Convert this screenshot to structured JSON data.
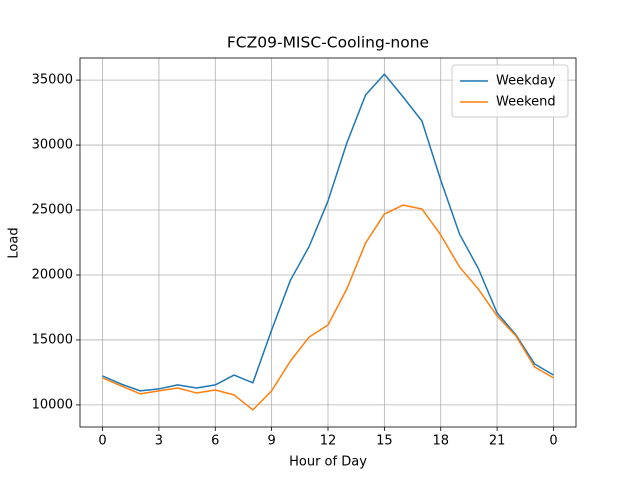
{
  "chart_data": {
    "type": "line",
    "title": "FCZ09-MISC-Cooling-none",
    "xlabel": "Hour of Day",
    "ylabel": "Load",
    "x": [
      0,
      1,
      2,
      3,
      4,
      5,
      6,
      7,
      8,
      9,
      10,
      11,
      12,
      13,
      14,
      15,
      16,
      17,
      18,
      19,
      20,
      21,
      22,
      23,
      24
    ],
    "series": [
      {
        "name": "Weekday",
        "color": "#1f77b4",
        "values": [
          12230,
          11600,
          11080,
          11230,
          11540,
          11300,
          11540,
          12300,
          11700,
          15770,
          19600,
          22200,
          25700,
          30150,
          33850,
          35460,
          33700,
          31850,
          27300,
          23150,
          20500,
          17080,
          15400,
          13150,
          12300
        ]
      },
      {
        "name": "Weekend",
        "color": "#ff7f0e",
        "values": [
          12080,
          11460,
          10850,
          11080,
          11300,
          10920,
          11150,
          10770,
          9620,
          11080,
          13380,
          15230,
          16150,
          18920,
          22460,
          24690,
          25380,
          25080,
          23080,
          20620,
          18920,
          16850,
          15310,
          12920,
          12080
        ]
      }
    ],
    "xlim": [
      -1.2,
      25.2
    ],
    "xticks": [
      0,
      3,
      6,
      9,
      12,
      15,
      18,
      21,
      {
        "value": 24,
        "label": "0"
      }
    ],
    "ylim": [
      8300,
      36700
    ],
    "yticks": [
      10000,
      15000,
      20000,
      25000,
      30000,
      35000
    ],
    "grid": true,
    "legend": "upper right"
  }
}
